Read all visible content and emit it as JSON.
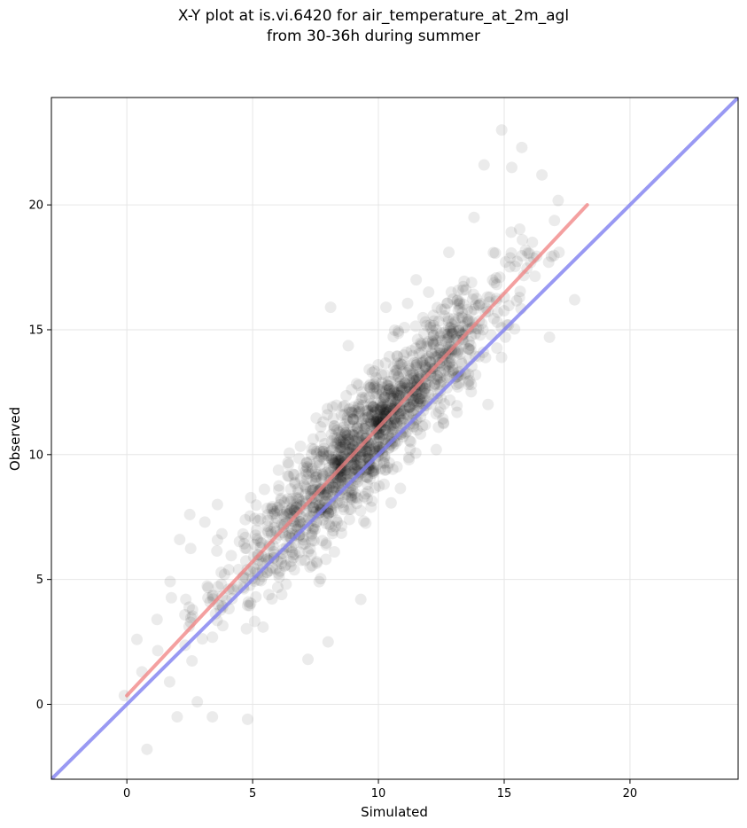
{
  "chart_data": {
    "type": "scatter",
    "title": "X-Y plot at is.vi.6420 for air_temperature_at_2m_agl",
    "subtitle": "from 30-36h during summer",
    "xlabel": "Simulated",
    "ylabel": "Observed",
    "xlim": [
      -3,
      24.3
    ],
    "ylim": [
      -3,
      24.3
    ],
    "xticks": [
      0,
      5,
      10,
      15,
      20
    ],
    "yticks": [
      0,
      5,
      10,
      15,
      20
    ],
    "x_tick_labels": [
      "0",
      "5",
      "10",
      "15",
      "20"
    ],
    "y_tick_labels": [
      "0",
      "5",
      "10",
      "15",
      "20"
    ],
    "grid": true,
    "point_color": "#000000",
    "point_alpha": 0.08,
    "fit_line": {
      "color": "#f08080",
      "x": [
        0,
        18.3
      ],
      "y": [
        0.35,
        20.0
      ]
    },
    "identity_line": {
      "color": "#8080f0",
      "x": [
        -3,
        24.3
      ],
      "y": [
        -3,
        24.3
      ]
    },
    "points_generated": {
      "count": 1500,
      "seed": 6420,
      "x_center": 9.6,
      "x_sd": 2.8,
      "slope": 1.07,
      "intercept": 0.35,
      "noise_sd": 1.15
    },
    "points_outliers": [
      [
        14.9,
        23.0
      ],
      [
        15.7,
        22.3
      ],
      [
        14.2,
        21.6
      ],
      [
        15.3,
        21.5
      ],
      [
        16.5,
        21.2
      ],
      [
        0.8,
        -1.8
      ],
      [
        4.8,
        -0.6
      ],
      [
        3.4,
        -0.5
      ],
      [
        2.0,
        -0.5
      ],
      [
        2.8,
        0.1
      ],
      [
        1.7,
        0.9
      ],
      [
        9.3,
        4.2
      ],
      [
        8.0,
        2.5
      ],
      [
        7.2,
        1.8
      ],
      [
        16.8,
        14.7
      ],
      [
        17.8,
        16.2
      ],
      [
        12.3,
        10.2
      ],
      [
        12.8,
        18.1
      ],
      [
        11.5,
        17.0
      ],
      [
        13.8,
        19.5
      ],
      [
        0.4,
        2.6
      ],
      [
        0.6,
        1.3
      ],
      [
        1.2,
        3.4
      ],
      [
        2.5,
        7.6
      ],
      [
        3.6,
        8.0
      ],
      [
        -0.1,
        0.35
      ],
      [
        2.1,
        6.6
      ],
      [
        3.1,
        7.3
      ],
      [
        8.1,
        15.9
      ],
      [
        10.3,
        15.9
      ]
    ]
  }
}
